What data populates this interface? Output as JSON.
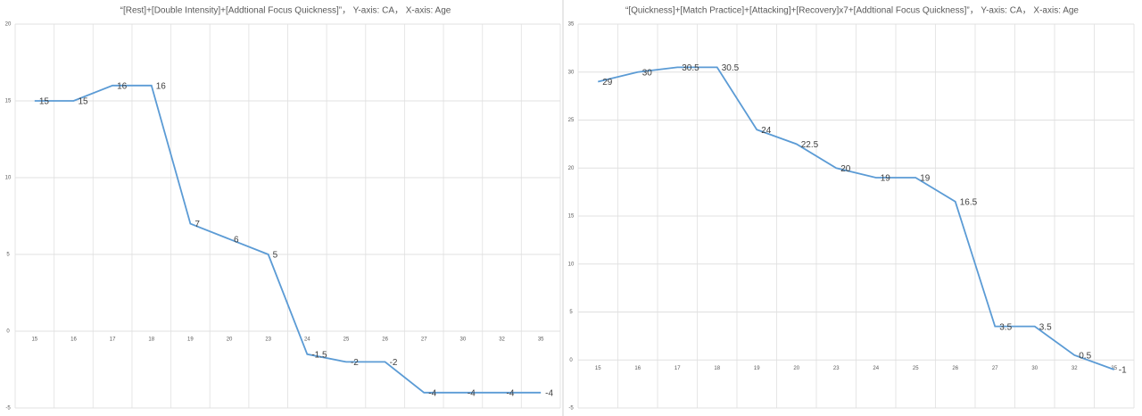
{
  "chart_data": [
    {
      "type": "line",
      "title": "“[Rest]+[Double Intensity]+[Addtional Focus Quickness]”， Y-axis: CA， X-axis: Age",
      "categories": [
        "15",
        "16",
        "17",
        "18",
        "19",
        "20",
        "23",
        "24",
        "25",
        "26",
        "27",
        "30",
        "32",
        "35"
      ],
      "values": [
        15,
        15,
        16,
        16,
        7,
        6,
        5,
        -1.5,
        -2,
        -2,
        -4,
        -4,
        -4,
        -4
      ],
      "color": "#5b9bd5",
      "ylim": [
        -5,
        20
      ],
      "yticks": [
        -5,
        0,
        5,
        10,
        15,
        20
      ],
      "grid": true
    },
    {
      "type": "line",
      "title": "“[Quickness]+[Match Practice]+[Attacking]+[Recovery]x7+[Addtional Focus Quickness]”， Y-axis: CA， X-axis: Age",
      "categories": [
        "15",
        "16",
        "17",
        "18",
        "19",
        "20",
        "23",
        "24",
        "25",
        "26",
        "27",
        "30",
        "32",
        "35"
      ],
      "values": [
        29,
        30,
        30.5,
        30.5,
        24,
        22.5,
        20,
        19,
        19,
        16.5,
        3.5,
        3.5,
        0.5,
        -1
      ],
      "color": "#5b9bd5",
      "ylim": [
        -5,
        35
      ],
      "yticks": [
        -5,
        0,
        5,
        10,
        15,
        20,
        25,
        30,
        35
      ],
      "grid": true
    }
  ]
}
